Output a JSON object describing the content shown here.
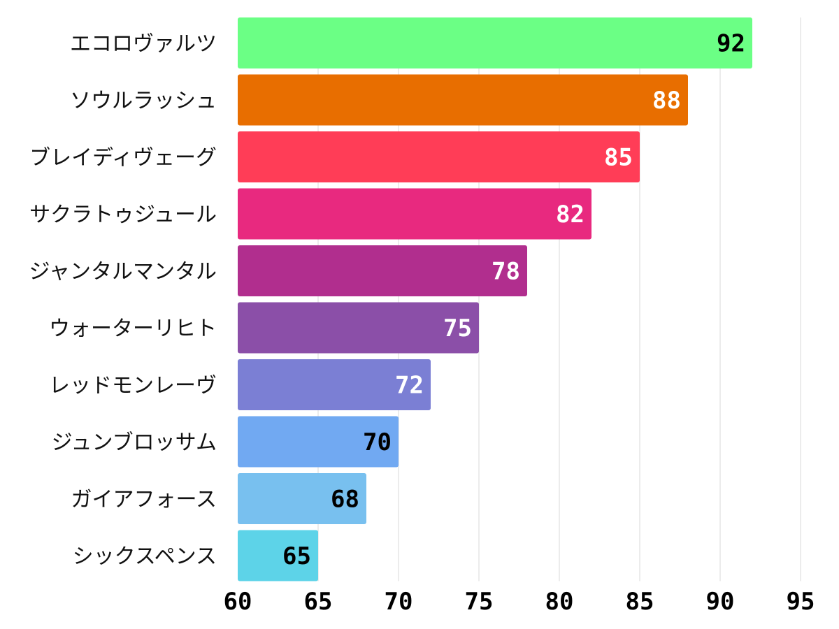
{
  "chart_data": {
    "type": "bar",
    "orientation": "horizontal",
    "title": "",
    "xlabel": "",
    "ylabel": "",
    "xlim": [
      60,
      95
    ],
    "xticks": [
      60,
      65,
      70,
      75,
      80,
      85,
      90,
      95
    ],
    "grid": true,
    "categories": [
      "エコロヴァルツ",
      "ソウルラッシュ",
      "ブレイディヴェーグ",
      "サクラトゥジュール",
      "ジャンタルマンタル",
      "ウォーターリヒト",
      "レッドモンレーヴ",
      "ジュンブロッサム",
      "ガイアフォース",
      "シックスペンス"
    ],
    "values": [
      92,
      88,
      85,
      82,
      78,
      75,
      72,
      70,
      68,
      65
    ],
    "colors": [
      "#6bff85",
      "#e86e00",
      "#ff3d57",
      "#e8297f",
      "#b12e8e",
      "#8b4fa8",
      "#7b7fd4",
      "#71a9f2",
      "#78c0ef",
      "#5dd3e8"
    ],
    "label_colors": [
      "#000000",
      "#ffffff",
      "#ffffff",
      "#ffffff",
      "#ffffff",
      "#ffffff",
      "#ffffff",
      "#000000",
      "#000000",
      "#000000"
    ]
  }
}
